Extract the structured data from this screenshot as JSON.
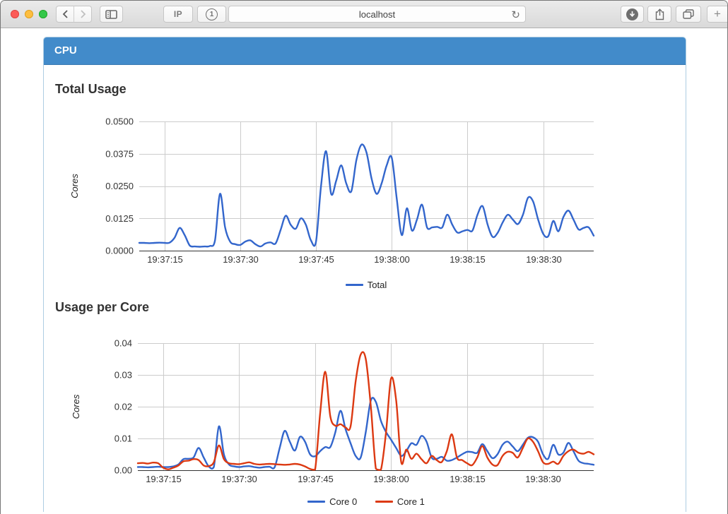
{
  "browser": {
    "url": "localhost",
    "ip_button_label": "IP",
    "onepassword_badge": "1",
    "new_tab_label": "+",
    "icons": {
      "back": "chevron-left",
      "forward": "chevron-right",
      "sidebar": "sidebar-panel",
      "reload": "↻",
      "download": "circle-down-arrow",
      "share": "box-up-arrow",
      "tabs": "overlapping-squares",
      "new_tab": "plus"
    }
  },
  "panel": {
    "title": "CPU"
  },
  "sections": {
    "total": {
      "title": "Total Usage"
    },
    "per_core": {
      "title": "Usage per Core"
    }
  },
  "colors": {
    "header_blue": "#428bca",
    "series_blue": "#3366CC",
    "series_red": "#DC3912",
    "gridline": "#cccccc",
    "axis": "#333333"
  },
  "chart_data": [
    {
      "type": "line",
      "title": "Total Usage",
      "ylabel": "Cores",
      "ylim": [
        0,
        0.05
      ],
      "x_range": [
        0,
        90
      ],
      "x_start_time": "19:37:10",
      "x_step_seconds": 1,
      "grid": true,
      "legend_position": "bottom",
      "yticks": [
        {
          "value": 0.0,
          "label": "0.0000"
        },
        {
          "value": 0.0125,
          "label": "0.0125"
        },
        {
          "value": 0.025,
          "label": "0.0250"
        },
        {
          "value": 0.0375,
          "label": "0.0375"
        },
        {
          "value": 0.05,
          "label": "0.0500"
        }
      ],
      "xticks": [
        {
          "t": 5,
          "label": "19:37:15"
        },
        {
          "t": 20,
          "label": "19:37:30"
        },
        {
          "t": 35,
          "label": "19:37:45"
        },
        {
          "t": 50,
          "label": "19:38:00"
        },
        {
          "t": 65,
          "label": "19:38:15"
        },
        {
          "t": 80,
          "label": "19:38:30"
        }
      ],
      "series": [
        {
          "name": "Total",
          "color": "#3366CC",
          "values": [
            0.003,
            0.003,
            0.0029,
            0.003,
            0.0031,
            0.003,
            0.0031,
            0.005,
            0.0088,
            0.006,
            0.002,
            0.0016,
            0.0015,
            0.0016,
            0.0018,
            0.004,
            0.022,
            0.009,
            0.0035,
            0.0025,
            0.0022,
            0.0035,
            0.004,
            0.0025,
            0.0016,
            0.0028,
            0.0032,
            0.0028,
            0.008,
            0.0135,
            0.01,
            0.0085,
            0.0125,
            0.01,
            0.004,
            0.0035,
            0.025,
            0.0385,
            0.022,
            0.027,
            0.033,
            0.026,
            0.023,
            0.035,
            0.041,
            0.038,
            0.028,
            0.022,
            0.026,
            0.033,
            0.036,
            0.02,
            0.006,
            0.0164,
            0.0078,
            0.012,
            0.0178,
            0.009,
            0.009,
            0.0092,
            0.009,
            0.0139,
            0.01,
            0.007,
            0.0075,
            0.008,
            0.0078,
            0.014,
            0.0172,
            0.01,
            0.0053,
            0.007,
            0.011,
            0.0139,
            0.012,
            0.0103,
            0.014,
            0.0205,
            0.019,
            0.012,
            0.0065,
            0.0056,
            0.0115,
            0.0075,
            0.013,
            0.0155,
            0.012,
            0.0082,
            0.0088,
            0.009,
            0.0058
          ]
        }
      ]
    },
    {
      "type": "line",
      "title": "Usage per Core",
      "ylabel": "Cores",
      "ylim": [
        0,
        0.04
      ],
      "x_range": [
        0,
        90
      ],
      "x_start_time": "19:37:10",
      "x_step_seconds": 1,
      "grid": true,
      "legend_position": "bottom",
      "yticks": [
        {
          "value": 0.0,
          "label": "0.00"
        },
        {
          "value": 0.01,
          "label": "0.01"
        },
        {
          "value": 0.02,
          "label": "0.02"
        },
        {
          "value": 0.03,
          "label": "0.03"
        },
        {
          "value": 0.04,
          "label": "0.04"
        }
      ],
      "xticks": [
        {
          "t": 5,
          "label": "19:37:15"
        },
        {
          "t": 20,
          "label": "19:37:30"
        },
        {
          "t": 35,
          "label": "19:37:45"
        },
        {
          "t": 50,
          "label": "19:38:00"
        },
        {
          "t": 65,
          "label": "19:38:15"
        },
        {
          "t": 80,
          "label": "19:38:30"
        }
      ],
      "series": [
        {
          "name": "Core 0",
          "color": "#3366CC",
          "values": [
            0.001,
            0.001,
            0.0009,
            0.001,
            0.0011,
            0.001,
            0.001,
            0.0012,
            0.0018,
            0.0035,
            0.0036,
            0.004,
            0.007,
            0.004,
            0.0012,
            0.001,
            0.0138,
            0.005,
            0.0018,
            0.0012,
            0.001,
            0.0012,
            0.0013,
            0.001,
            0.0008,
            0.001,
            0.0011,
            0.0009,
            0.007,
            0.0124,
            0.009,
            0.0062,
            0.0105,
            0.009,
            0.005,
            0.0044,
            0.006,
            0.0073,
            0.0073,
            0.012,
            0.0187,
            0.013,
            0.0085,
            0.0045,
            0.004,
            0.012,
            0.022,
            0.0215,
            0.0155,
            0.012,
            0.0096,
            0.007,
            0.0045,
            0.006,
            0.0085,
            0.008,
            0.0108,
            0.009,
            0.004,
            0.0036,
            0.0042,
            0.003,
            0.0032,
            0.004,
            0.005,
            0.0058,
            0.0057,
            0.0055,
            0.0082,
            0.006,
            0.0038,
            0.005,
            0.008,
            0.009,
            0.0075,
            0.006,
            0.008,
            0.0102,
            0.0104,
            0.009,
            0.005,
            0.0036,
            0.008,
            0.005,
            0.0055,
            0.0086,
            0.006,
            0.003,
            0.0022,
            0.002,
            0.0017
          ]
        },
        {
          "name": "Core 1",
          "color": "#DC3912",
          "values": [
            0.0022,
            0.0023,
            0.0021,
            0.0024,
            0.0022,
            0.0008,
            0.0003,
            0.0008,
            0.0015,
            0.0028,
            0.003,
            0.0035,
            0.0032,
            0.0015,
            0.0013,
            0.0025,
            0.0078,
            0.0035,
            0.0022,
            0.002,
            0.0019,
            0.0022,
            0.0025,
            0.002,
            0.0018,
            0.0019,
            0.002,
            0.0019,
            0.0018,
            0.0017,
            0.0018,
            0.002,
            0.0018,
            0.0012,
            0.0004,
            0.0002,
            0.018,
            0.031,
            0.017,
            0.014,
            0.0145,
            0.0135,
            0.0138,
            0.028,
            0.0364,
            0.035,
            0.02,
            0.0005,
            0.0002,
            0.012,
            0.0289,
            0.022,
            0.0025,
            0.0065,
            0.0036,
            0.0052,
            0.0035,
            0.0022,
            0.0045,
            0.0032,
            0.0026,
            0.006,
            0.0113,
            0.004,
            0.0032,
            0.0022,
            0.0016,
            0.004,
            0.0076,
            0.004,
            0.0018,
            0.0016,
            0.0045,
            0.0058,
            0.0055,
            0.004,
            0.007,
            0.01,
            0.009,
            0.006,
            0.0025,
            0.002,
            0.0027,
            0.002,
            0.0045,
            0.006,
            0.0065,
            0.0055,
            0.0052,
            0.0058,
            0.005
          ]
        }
      ]
    }
  ]
}
